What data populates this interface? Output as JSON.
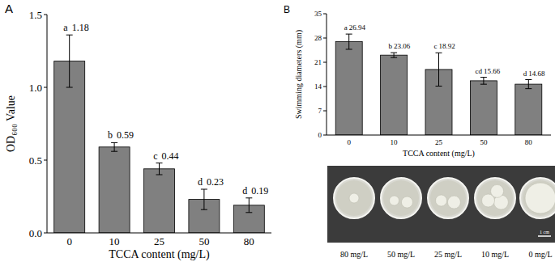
{
  "chart_data": [
    {
      "type": "bar",
      "title": "A",
      "categories": [
        "0",
        "10",
        "25",
        "50",
        "80"
      ],
      "values": [
        1.18,
        0.59,
        0.44,
        0.23,
        0.19
      ],
      "errors": [
        0.18,
        0.03,
        0.04,
        0.07,
        0.05
      ],
      "annotations": [
        "a",
        "b",
        "c",
        "d",
        "d"
      ],
      "color": "#808080",
      "x_label": "TCCA content (mg/L)",
      "y_label": "OD₆₀₀ Value",
      "ylim": [
        0,
        1.5
      ],
      "yticks": [
        {
          "value": 0,
          "label": "0.0"
        },
        {
          "value": 0.5,
          "label": "0.5"
        },
        {
          "value": 1,
          "label": "1.0"
        },
        {
          "value": 1.5,
          "label": "1.5"
        }
      ],
      "grid": false,
      "data_labels": true
    },
    {
      "type": "bar",
      "title": "B",
      "categories": [
        "0",
        "10",
        "25",
        "50",
        "80"
      ],
      "values": [
        26.94,
        23.06,
        18.92,
        15.66,
        14.68
      ],
      "errors": [
        2.2,
        0.7,
        4.8,
        1.0,
        1.3
      ],
      "annotations": [
        "a",
        "b",
        "c",
        "cd",
        "d"
      ],
      "color": "#808080",
      "x_label": "TCCA content (mg/L)",
      "y_label": "Swimming diameters (mm)",
      "ylim": [
        0,
        35
      ],
      "yticks": [
        0,
        7,
        14,
        21,
        28,
        35
      ],
      "grid": false,
      "data_labels": true
    }
  ],
  "image": {
    "labels": [
      "80 mg/L",
      "50 mg/L",
      "25 mg/L",
      "10 mg/L",
      "0 mg/L"
    ],
    "scale_bar": "1 cm"
  }
}
